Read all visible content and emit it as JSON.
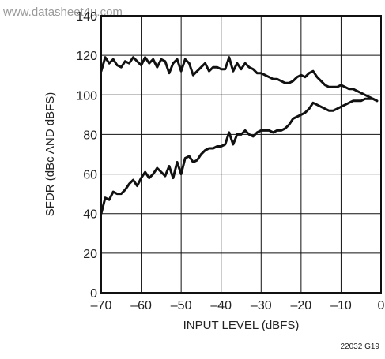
{
  "watermark": "www.datasheet4u.com",
  "figure_id": "22032 G19",
  "chart_data": {
    "type": "line",
    "xlabel": "INPUT LEVEL (dBFS)",
    "ylabel": "SFDR (dBc AND dBFS)",
    "xlim": [
      -70,
      0
    ],
    "ylim": [
      0,
      140
    ],
    "xticks": [
      -70,
      -60,
      -50,
      -40,
      -30,
      -20,
      -10,
      0
    ],
    "xtick_labels": [
      "–70",
      "–60",
      "–50",
      "–40",
      "–30",
      "–20",
      "–10",
      "0"
    ],
    "yticks": [
      0,
      20,
      40,
      60,
      80,
      100,
      120,
      140
    ],
    "ytick_labels": [
      "0",
      "20",
      "40",
      "60",
      "80",
      "100",
      "120",
      "140"
    ],
    "grid": true,
    "series": [
      {
        "x": [
          -70,
          -69,
          -68,
          -67,
          -66,
          -65,
          -64,
          -63,
          -62,
          -61,
          -60,
          -59,
          -58,
          -57,
          -56,
          -55,
          -54,
          -53,
          -52,
          -51,
          -50,
          -49,
          -48,
          -47,
          -46,
          -45,
          -44,
          -43,
          -42,
          -41,
          -40,
          -39,
          -38,
          -37,
          -36,
          -35,
          -34,
          -33,
          -32,
          -31,
          -30,
          -29,
          -28,
          -27,
          -26,
          -25,
          -24,
          -23,
          -22,
          -21,
          -20,
          -19,
          -18,
          -17,
          -16,
          -15,
          -14,
          -13,
          -12,
          -11,
          -10,
          -9,
          -8,
          -7,
          -6,
          -5,
          -4,
          -3,
          -2,
          -1
        ],
        "values": [
          112,
          119,
          116,
          118,
          115,
          114,
          117,
          116,
          119,
          117,
          115,
          119,
          116,
          118,
          114,
          118,
          117,
          111,
          116,
          118,
          112,
          118,
          116,
          110,
          112,
          114,
          116,
          112,
          114,
          114,
          113,
          113,
          119,
          112,
          116,
          113,
          116,
          114,
          113,
          111,
          111,
          110,
          109,
          108,
          108,
          107,
          106,
          106,
          107,
          109,
          110,
          109,
          111,
          112,
          109,
          107,
          105,
          104,
          104,
          104,
          105,
          104,
          103,
          103,
          102,
          101,
          100,
          99,
          98,
          97
        ]
      },
      {
        "x": [
          -70,
          -69,
          -68,
          -67,
          -66,
          -65,
          -64,
          -63,
          -62,
          -61,
          -60,
          -59,
          -58,
          -57,
          -56,
          -55,
          -54,
          -53,
          -52,
          -51,
          -50,
          -49,
          -48,
          -47,
          -46,
          -45,
          -44,
          -43,
          -42,
          -41,
          -40,
          -39,
          -38,
          -37,
          -36,
          -35,
          -34,
          -33,
          -32,
          -31,
          -30,
          -29,
          -28,
          -27,
          -26,
          -25,
          -24,
          -23,
          -22,
          -21,
          -20,
          -19,
          -18,
          -17,
          -16,
          -15,
          -14,
          -13,
          -12,
          -11,
          -10,
          -9,
          -8,
          -7,
          -6,
          -5,
          -4,
          -3,
          -2,
          -1
        ],
        "values": [
          40,
          48,
          47,
          51,
          50,
          50,
          52,
          55,
          57,
          54,
          58,
          61,
          58,
          60,
          63,
          61,
          59,
          64,
          58,
          66,
          60,
          68,
          69,
          66,
          67,
          70,
          72,
          73,
          73,
          74,
          74,
          75,
          81,
          75,
          80,
          80,
          82,
          80,
          79,
          81,
          82,
          82,
          82,
          81,
          82,
          82,
          83,
          85,
          88,
          89,
          90,
          91,
          93,
          96,
          95,
          94,
          93,
          92,
          92,
          93,
          94,
          95,
          96,
          97,
          97,
          97,
          98,
          98,
          98,
          97
        ]
      }
    ]
  }
}
